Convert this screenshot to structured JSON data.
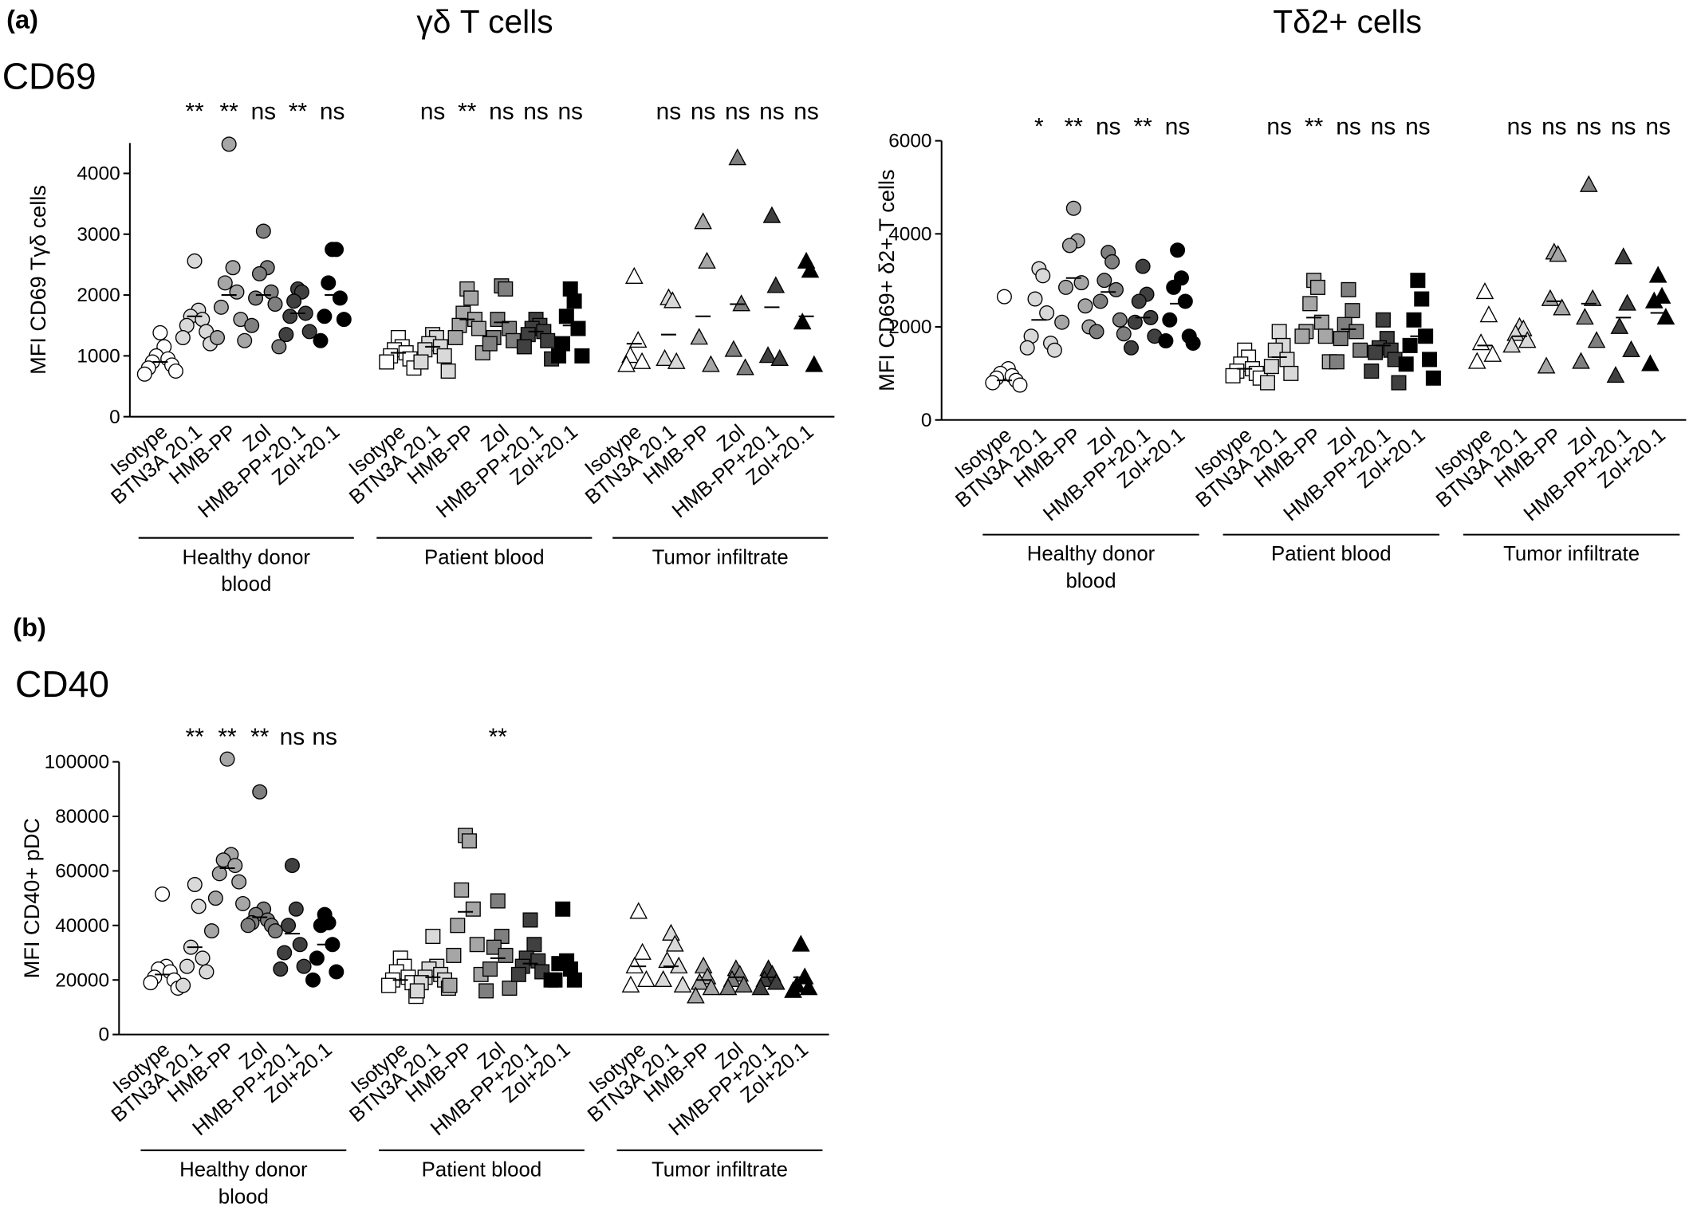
{
  "panels": [
    {
      "label": "(a)",
      "name": "CD69"
    },
    {
      "label": "(b)",
      "name": "CD40"
    }
  ],
  "chart_data": [
    {
      "type": "dot",
      "title": "γδ T cells",
      "y_label": "MFI CD69 Tγδ cells",
      "categories": [
        "Isotype",
        "BTN3A 20.1",
        "HMB-PP",
        "Zol",
        "HMB-PP+20.1",
        "Zol+20.1",
        "Isotype",
        "BTN3A 20.1",
        "HMB-PP",
        "Zol",
        "HMB-PP+20.1",
        "Zol+20.1",
        "Isotype",
        "BTN3A 20.1",
        "HMB-PP",
        "Zol",
        "HMB-PP+20.1",
        "Zol+20.1"
      ],
      "groups": [
        "Healthy donor blood",
        "Patient blood",
        "Tumor infiltrate"
      ],
      "markers": [
        "circle",
        "square",
        "triangle"
      ],
      "colors": [
        "#ffffff",
        "#d9d9d9",
        "#a6a6a6",
        "#7f7f7f",
        "#404040",
        "#000000"
      ],
      "values": [
        [
          1380,
          1150,
          1000,
          950,
          900,
          850,
          800,
          750,
          700
        ],
        [
          2560,
          1750,
          1650,
          1600,
          1500,
          1400,
          1300,
          1200
        ],
        [
          4480,
          2450,
          2200,
          2050,
          1800,
          1600,
          1300,
          1250
        ],
        [
          3050,
          2450,
          2350,
          2050,
          1950,
          1850,
          1500,
          1150
        ],
        [
          2100,
          2050,
          1900,
          1700,
          1650,
          1400,
          1350
        ],
        [
          2750,
          2750,
          2200,
          1950,
          1650,
          1600,
          1250
        ],
        [
          1300,
          1150,
          1100,
          1050,
          1000,
          950,
          900,
          800
        ],
        [
          1350,
          1300,
          1200,
          1150,
          1100,
          1000,
          900,
          750
        ],
        [
          2100,
          1950,
          1700,
          1600,
          1500,
          1450,
          1300,
          1050
        ],
        [
          2150,
          2100,
          1600,
          1450,
          1300,
          1250,
          1200
        ],
        [
          1600,
          1500,
          1450,
          1400,
          1350,
          1250,
          1150,
          950
        ],
        [
          2100,
          1900,
          1650,
          1450,
          1200,
          1000,
          1000
        ],
        [
          2300,
          1250,
          1000,
          900,
          850
        ],
        [
          1950,
          1900,
          950,
          900
        ],
        [
          3200,
          2550,
          1300,
          850
        ],
        [
          4250,
          1850,
          1100,
          800
        ],
        [
          3300,
          2150,
          1000,
          950
        ],
        [
          2550,
          2400,
          1550,
          850
        ]
      ],
      "means": [
        900,
        1650,
        2000,
        2000,
        1700,
        2000,
        1050,
        1150,
        1600,
        1550,
        1400,
        1500,
        1200,
        1350,
        1650,
        1850,
        1800,
        1650
      ],
      "annotations": [
        null,
        "**",
        "**",
        "ns",
        "**",
        "ns",
        null,
        "ns",
        "**",
        "ns",
        "ns",
        "ns",
        null,
        "ns",
        "ns",
        "ns",
        "ns",
        "ns"
      ],
      "ylim": [
        0,
        4500
      ],
      "yticks": [
        0,
        1000,
        2000,
        3000,
        4000
      ]
    },
    {
      "type": "dot",
      "title": "Tδ2+ cells",
      "y_label": "MFI CD69+ δ2+ T cells",
      "categories": [
        "Isotype",
        "BTN3A 20.1",
        "HMB-PP",
        "Zol",
        "HMB-PP+20.1",
        "Zol+20.1",
        "Isotype",
        "BTN3A 20.1",
        "HMB-PP",
        "Zol",
        "HMB-PP+20.1",
        "Zol+20.1",
        "Isotype",
        "BTN3A 20.1",
        "HMB-PP",
        "Zol",
        "HMB-PP+20.1",
        "Zol+20.1"
      ],
      "groups": [
        "Healthy donor blood",
        "Patient blood",
        "Tumor infiltrate"
      ],
      "markers": [
        "circle",
        "square",
        "triangle"
      ],
      "colors": [
        "#ffffff",
        "#d9d9d9",
        "#a6a6a6",
        "#7f7f7f",
        "#404040",
        "#000000"
      ],
      "values": [
        [
          2650,
          1100,
          1000,
          950,
          900,
          850,
          800,
          750
        ],
        [
          3250,
          3100,
          2600,
          2300,
          1800,
          1650,
          1550,
          1500
        ],
        [
          4550,
          3850,
          3750,
          2950,
          2850,
          2450,
          2100,
          2000
        ],
        [
          3600,
          3400,
          3000,
          2800,
          2550,
          2150,
          1900,
          1850
        ],
        [
          3300,
          2700,
          2550,
          2200,
          2100,
          1800,
          1550
        ],
        [
          3650,
          3050,
          2850,
          2550,
          2150,
          1800,
          1700,
          1650
        ],
        [
          1500,
          1350,
          1200,
          1100,
          1050,
          1000,
          950,
          900
        ],
        [
          1900,
          1600,
          1500,
          1300,
          1150,
          1000,
          800
        ],
        [
          3000,
          2850,
          2500,
          2100,
          1900,
          1800,
          1800,
          1250
        ],
        [
          2800,
          2350,
          2050,
          1900,
          1750,
          1500,
          1250
        ],
        [
          2150,
          1750,
          1550,
          1500,
          1450,
          1300,
          1050,
          800
        ],
        [
          3000,
          2600,
          2150,
          1800,
          1600,
          1300,
          1200,
          900
        ],
        [
          2750,
          2250,
          1650,
          1400,
          1250
        ],
        [
          2000,
          1950,
          1850,
          1700,
          1600
        ],
        [
          3600,
          3550,
          2600,
          2400,
          1150
        ],
        [
          5050,
          2600,
          2200,
          1700,
          1250
        ],
        [
          3500,
          2500,
          2000,
          1500,
          950
        ],
        [
          3100,
          2650,
          2550,
          2200,
          1200
        ]
      ],
      "means": [
        850,
        2150,
        3050,
        2750,
        2200,
        2500,
        1100,
        1350,
        2200,
        1950,
        1600,
        1800,
        1600,
        1800,
        2550,
        2500,
        2200,
        2300
      ],
      "annotations": [
        null,
        "*",
        "**",
        "ns",
        "**",
        "ns",
        null,
        "ns",
        "**",
        "ns",
        "ns",
        "ns",
        null,
        "ns",
        "ns",
        "ns",
        "ns",
        "ns"
      ],
      "ylim": [
        0,
        6000
      ],
      "yticks": [
        0,
        2000,
        4000,
        6000
      ]
    },
    {
      "type": "dot",
      "y_label": "MFI CD40+ pDC",
      "categories": [
        "Isotype",
        "BTN3A 20.1",
        "HMB-PP",
        "Zol",
        "HMB-PP+20.1",
        "Zol+20.1",
        "Isotype",
        "BTN3A 20.1",
        "HMB-PP",
        "Zol",
        "HMB-PP+20.1",
        "Zol+20.1",
        "Isotype",
        "BTN3A 20.1",
        "HMB-PP",
        "Zol",
        "HMB-PP+20.1",
        "Zol+20.1"
      ],
      "groups": [
        "Healthy donor blood",
        "Patient blood",
        "Tumor infiltrate"
      ],
      "markers": [
        "circle",
        "square",
        "triangle"
      ],
      "colors": [
        "#ffffff",
        "#d9d9d9",
        "#a6a6a6",
        "#7f7f7f",
        "#404040",
        "#000000"
      ],
      "values": [
        [
          51500,
          25000,
          24000,
          23000,
          21000,
          20000,
          19000,
          17000
        ],
        [
          55000,
          47000,
          32000,
          28000,
          25000,
          23000,
          18000
        ],
        [
          101000,
          66000,
          64000,
          62000,
          59000,
          56000,
          50000,
          48000,
          38000
        ],
        [
          89000,
          46000,
          44000,
          42000,
          41000,
          40000,
          40000,
          38000
        ],
        [
          62000,
          46000,
          40000,
          33000,
          30000,
          25000,
          24000
        ],
        [
          44000,
          41000,
          40000,
          33000,
          28000,
          23000,
          20000
        ],
        [
          28000,
          25000,
          23000,
          21000,
          20000,
          19000,
          18000,
          14000
        ],
        [
          36000,
          25000,
          24000,
          22000,
          21000,
          20000,
          19000,
          17000,
          16000
        ],
        [
          73000,
          71000,
          53000,
          46000,
          40000,
          33000,
          29000,
          22000,
          18000
        ],
        [
          49000,
          36000,
          32000,
          29000,
          24000,
          17000,
          16000
        ],
        [
          42000,
          33000,
          28000,
          27000,
          25000,
          23000,
          22000
        ],
        [
          46000,
          27000,
          26000,
          24000,
          20000,
          20000,
          20000
        ],
        [
          45000,
          30000,
          25000,
          20000,
          18000
        ],
        [
          37000,
          33000,
          27000,
          25000,
          20000,
          18000
        ],
        [
          25000,
          21000,
          19000,
          17000,
          14000
        ],
        [
          24000,
          22000,
          20000,
          18000,
          17000
        ],
        [
          24000,
          22000,
          20000,
          19000,
          17000
        ],
        [
          33000,
          21000,
          18000,
          17000,
          16000
        ]
      ],
      "means": [
        22000,
        32000,
        61000,
        43000,
        37000,
        33000,
        20000,
        21000,
        45000,
        28000,
        26000,
        26000,
        25000,
        25000,
        20000,
        21000,
        21000,
        21000
      ],
      "annotations": [
        null,
        "**",
        "**",
        "**",
        "ns",
        "ns",
        null,
        null,
        null,
        "**",
        null,
        null,
        null,
        null,
        null,
        null,
        null,
        null
      ],
      "ylim": [
        0,
        100000
      ],
      "yticks": [
        0,
        20000,
        40000,
        60000,
        80000,
        100000
      ]
    }
  ]
}
